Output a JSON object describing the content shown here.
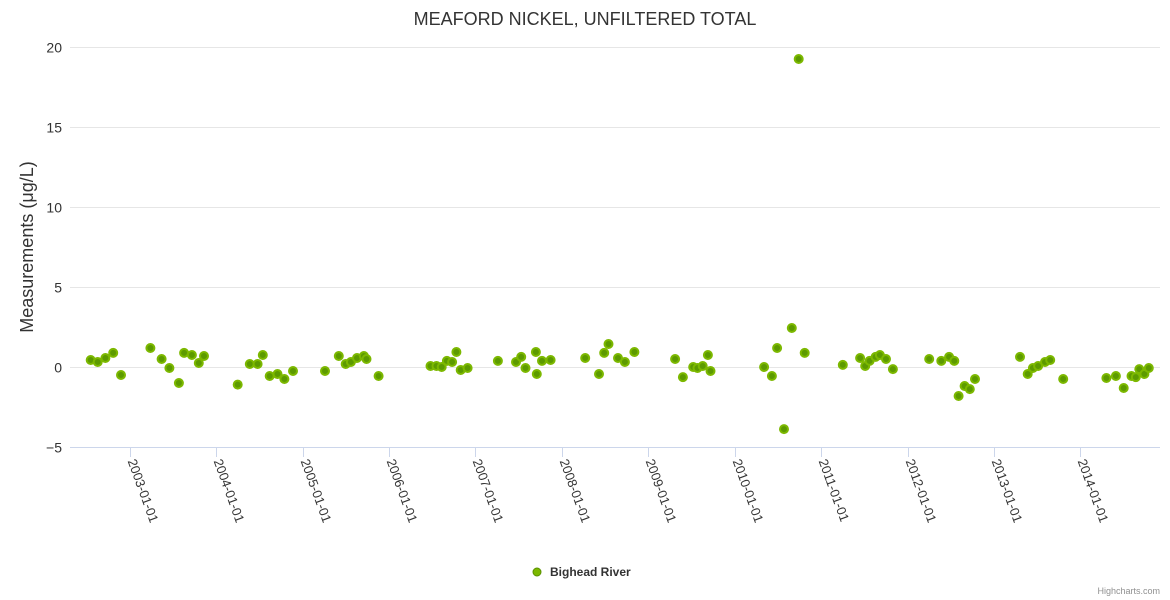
{
  "chart_data": {
    "type": "scatter",
    "title": "MEAFORD NICKEL, UNFILTERED TOTAL",
    "xlabel": "",
    "ylabel": "Measurements (μg/L)",
    "ylim": [
      -5,
      20
    ],
    "yticks": [
      -5,
      0,
      5,
      10,
      15,
      20
    ],
    "xlim": [
      2002.31,
      2014.92
    ],
    "xticks": [
      {
        "value": 2003,
        "label": "2003-01-01"
      },
      {
        "value": 2004,
        "label": "2004-01-01"
      },
      {
        "value": 2005,
        "label": "2005-01-01"
      },
      {
        "value": 2006,
        "label": "2006-01-01"
      },
      {
        "value": 2007,
        "label": "2007-01-01"
      },
      {
        "value": 2008,
        "label": "2008-01-01"
      },
      {
        "value": 2009,
        "label": "2009-01-01"
      },
      {
        "value": 2010,
        "label": "2010-01-01"
      },
      {
        "value": 2011,
        "label": "2011-01-01"
      },
      {
        "value": 2012,
        "label": "2012-01-01"
      },
      {
        "value": 2013,
        "label": "2013-01-01"
      },
      {
        "value": 2014,
        "label": "2014-01-01"
      }
    ],
    "grid": true,
    "legend_position": "bottom-center",
    "series": [
      {
        "name": "Bighead River",
        "color": "#7cb800",
        "points": [
          [
            2002.55,
            0.44
          ],
          [
            2002.63,
            0.31
          ],
          [
            2002.72,
            0.56
          ],
          [
            2002.81,
            0.88
          ],
          [
            2002.9,
            -0.5
          ],
          [
            2003.24,
            1.19
          ],
          [
            2003.37,
            0.5
          ],
          [
            2003.46,
            -0.06
          ],
          [
            2003.57,
            -1.0
          ],
          [
            2003.63,
            0.88
          ],
          [
            2003.72,
            0.75
          ],
          [
            2003.8,
            0.25
          ],
          [
            2003.86,
            0.69
          ],
          [
            2004.25,
            -1.1
          ],
          [
            2004.39,
            0.19
          ],
          [
            2004.48,
            0.19
          ],
          [
            2004.54,
            0.75
          ],
          [
            2004.62,
            -0.56
          ],
          [
            2004.71,
            -0.44
          ],
          [
            2004.79,
            -0.75
          ],
          [
            2004.89,
            -0.25
          ],
          [
            2005.26,
            -0.25
          ],
          [
            2005.42,
            0.69
          ],
          [
            2005.5,
            0.19
          ],
          [
            2005.56,
            0.31
          ],
          [
            2005.63,
            0.56
          ],
          [
            2005.71,
            0.69
          ],
          [
            2005.74,
            0.5
          ],
          [
            2005.88,
            -0.56
          ],
          [
            2006.48,
            0.06
          ],
          [
            2006.55,
            0.06
          ],
          [
            2006.61,
            0.0
          ],
          [
            2006.67,
            0.38
          ],
          [
            2006.73,
            0.31
          ],
          [
            2006.78,
            0.94
          ],
          [
            2006.83,
            -0.19
          ],
          [
            2006.91,
            -0.06
          ],
          [
            2007.26,
            0.38
          ],
          [
            2007.47,
            0.31
          ],
          [
            2007.53,
            0.63
          ],
          [
            2007.58,
            -0.06
          ],
          [
            2007.7,
            0.94
          ],
          [
            2007.71,
            -0.44
          ],
          [
            2007.77,
            0.38
          ],
          [
            2007.87,
            0.44
          ],
          [
            2008.27,
            0.56
          ],
          [
            2008.43,
            -0.44
          ],
          [
            2008.49,
            0.88
          ],
          [
            2008.54,
            1.44
          ],
          [
            2008.65,
            0.56
          ],
          [
            2008.73,
            0.31
          ],
          [
            2008.84,
            0.94
          ],
          [
            2009.31,
            0.5
          ],
          [
            2009.4,
            -0.63
          ],
          [
            2009.52,
            0.0
          ],
          [
            2009.57,
            -0.06
          ],
          [
            2009.63,
            0.06
          ],
          [
            2009.69,
            0.75
          ],
          [
            2009.72,
            -0.25
          ],
          [
            2010.34,
            0.0
          ],
          [
            2010.43,
            -0.56
          ],
          [
            2010.49,
            1.19
          ],
          [
            2010.57,
            -3.88
          ],
          [
            2010.66,
            2.44
          ],
          [
            2010.74,
            19.25
          ],
          [
            2010.81,
            0.88
          ],
          [
            2011.25,
            0.13
          ],
          [
            2011.45,
            0.56
          ],
          [
            2011.51,
            0.06
          ],
          [
            2011.56,
            0.38
          ],
          [
            2011.63,
            0.63
          ],
          [
            2011.68,
            0.75
          ],
          [
            2011.75,
            0.5
          ],
          [
            2011.83,
            -0.13
          ],
          [
            2012.25,
            0.5
          ],
          [
            2012.39,
            0.38
          ],
          [
            2012.48,
            0.63
          ],
          [
            2012.54,
            0.38
          ],
          [
            2012.59,
            -1.81
          ],
          [
            2012.66,
            -1.19
          ],
          [
            2012.72,
            -1.38
          ],
          [
            2012.78,
            -0.75
          ],
          [
            2013.3,
            0.63
          ],
          [
            2013.39,
            -0.44
          ],
          [
            2013.45,
            -0.06
          ],
          [
            2013.51,
            0.06
          ],
          [
            2013.59,
            0.31
          ],
          [
            2013.65,
            0.44
          ],
          [
            2013.8,
            -0.75
          ],
          [
            2014.3,
            -0.69
          ],
          [
            2014.41,
            -0.56
          ],
          [
            2014.5,
            -1.31
          ],
          [
            2014.59,
            -0.56
          ],
          [
            2014.64,
            -0.63
          ],
          [
            2014.68,
            -0.13
          ],
          [
            2014.74,
            -0.44
          ],
          [
            2014.79,
            -0.06
          ]
        ]
      }
    ]
  },
  "credits": "Highcharts.com"
}
